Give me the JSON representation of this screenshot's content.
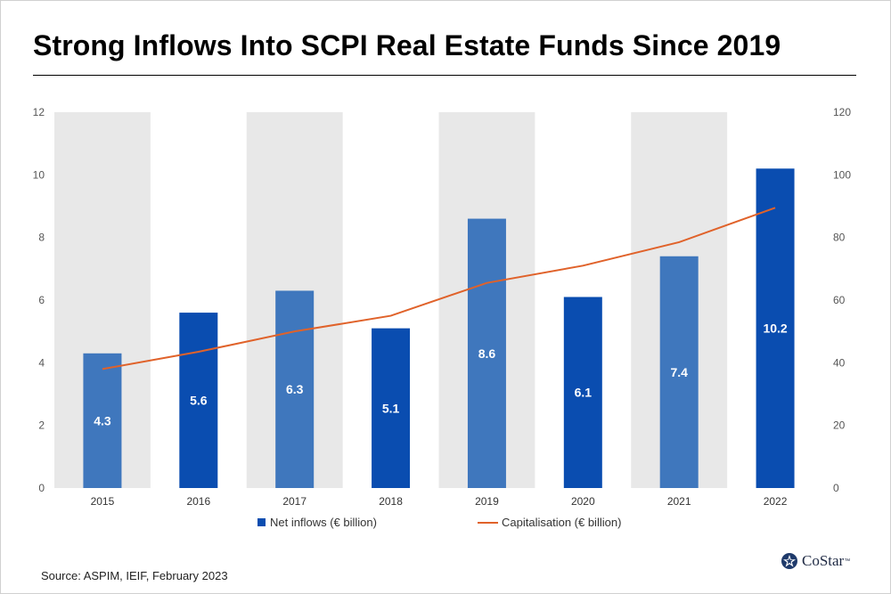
{
  "title": "Strong Inflows Into SCPI Real Estate Funds Since 2019",
  "source": "Source: ASPIM, IEIF, February 2023",
  "logo": {
    "text": "CoStar",
    "icon": "costar-star-logo-icon"
  },
  "colors": {
    "bar_dark": "#0a4db0",
    "bar_light": "#3f77bd",
    "line": "#e0622a",
    "band": "#e8e8e8",
    "axis_text": "#555555"
  },
  "chart_data": {
    "type": "bar",
    "categories": [
      "2015",
      "2016",
      "2017",
      "2018",
      "2019",
      "2020",
      "2021",
      "2022"
    ],
    "series": [
      {
        "name": "Net inflows (€ billion)",
        "type": "bar",
        "axis": "left",
        "values": [
          4.3,
          5.6,
          6.3,
          5.1,
          8.6,
          6.1,
          7.4,
          10.2
        ],
        "labels": [
          "4.3",
          "5.6",
          "6.3",
          "5.1",
          "8.6",
          "6.1",
          "7.4",
          "10.2"
        ],
        "bar_shades": [
          "light",
          "dark",
          "light",
          "dark",
          "light",
          "dark",
          "light",
          "dark"
        ]
      },
      {
        "name": "Capitalisation (€ billion)",
        "type": "line",
        "axis": "right",
        "values": [
          38,
          43.5,
          50,
          55,
          65.5,
          71,
          78.5,
          89.5
        ]
      }
    ],
    "y_left": {
      "min": 0,
      "max": 12,
      "ticks": [
        "0",
        "2",
        "4",
        "6",
        "8",
        "10",
        "12"
      ]
    },
    "y_right": {
      "min": 0,
      "max": 120,
      "ticks": [
        "0",
        "20",
        "40",
        "60",
        "80",
        "100",
        "120"
      ]
    },
    "shaded_columns": [
      "2015",
      "2017",
      "2019",
      "2021"
    ],
    "legend_position": "bottom-center",
    "grid": false
  }
}
